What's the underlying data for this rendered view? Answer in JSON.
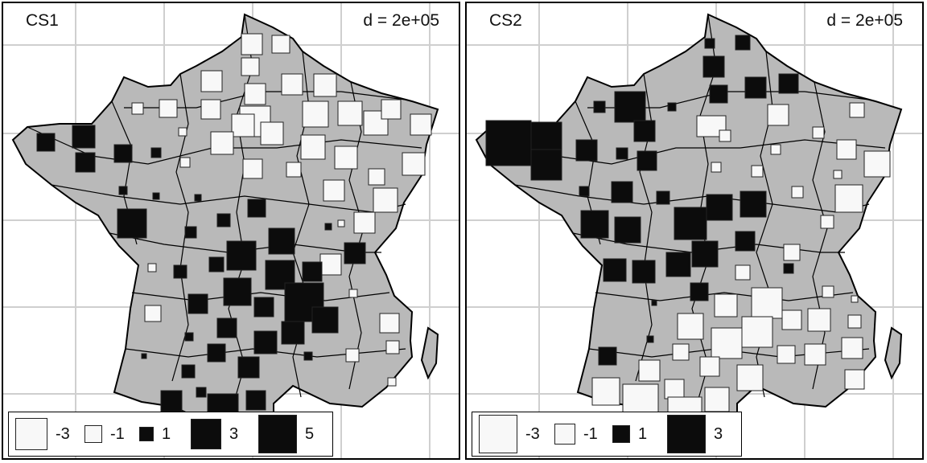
{
  "panels": [
    {
      "title": "CS1",
      "scale_label": "d = 2e+05",
      "legend": [
        {
          "label": "-3",
          "value": -3
        },
        {
          "label": "-1",
          "value": -1
        },
        {
          "label": "1",
          "value": 1
        },
        {
          "label": "3",
          "value": 3
        },
        {
          "label": "5",
          "value": 5
        }
      ]
    },
    {
      "title": "CS2",
      "scale_label": "d = 2e+05",
      "legend": [
        {
          "label": "-3",
          "value": -3
        },
        {
          "label": "-1",
          "value": -1
        },
        {
          "label": "1",
          "value": 1
        },
        {
          "label": "3",
          "value": 3
        }
      ]
    }
  ],
  "colors": {
    "land": "#b9b9b9",
    "positive": "#0c0c0c",
    "negative": "#f8f8f8",
    "grid": "#cfcfcf",
    "border": "#000000"
  }
}
